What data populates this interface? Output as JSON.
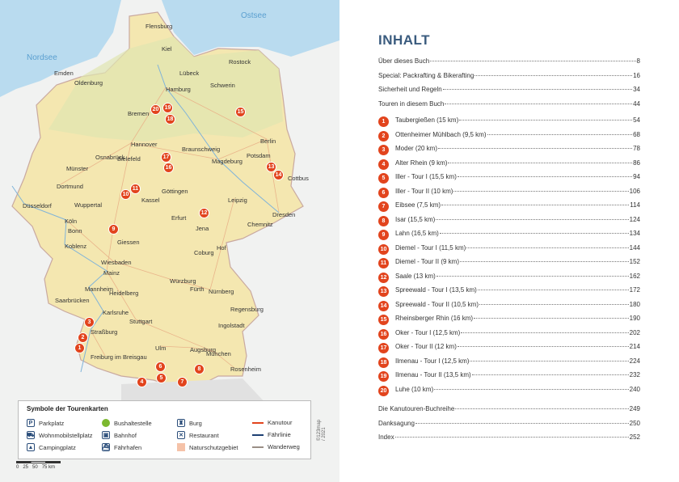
{
  "map": {
    "seas": [
      "Ostsee",
      "Nordsee"
    ],
    "cities": [
      "Flensburg",
      "Kiel",
      "Lübeck",
      "Rostock",
      "Emden",
      "Hamburg",
      "Schwerin",
      "Oldenburg",
      "Bremen",
      "Hannover",
      "Braunschweig",
      "Berlin",
      "Potsdam",
      "Magdeburg",
      "Osnabrück",
      "Bielefeld",
      "Münster",
      "Cottbus",
      "Dortmund",
      "Wuppertal",
      "Düsseldorf",
      "Kassel",
      "Göttingen",
      "Leipzig",
      "Dresden",
      "Köln",
      "Bonn",
      "Erfurt",
      "Jena",
      "Chemnitz",
      "Giessen",
      "Koblenz",
      "Coburg",
      "Hof",
      "Wiesbaden",
      "Mainz",
      "Würzburg",
      "Fürth",
      "Nürnberg",
      "Mannheim",
      "Heidelberg",
      "Saarbrücken",
      "Karlsruhe",
      "Regensburg",
      "Stuttgart",
      "Ingolstadt",
      "Straßburg",
      "Ulm",
      "Augsburg",
      "München",
      "Freiburg im Breisgau",
      "Rosenheim"
    ],
    "markers": [
      "1",
      "2",
      "3",
      "4",
      "5",
      "6",
      "7",
      "8",
      "9",
      "10",
      "11",
      "12",
      "13",
      "14",
      "15",
      "16",
      "17",
      "18",
      "19",
      "20"
    ],
    "legend": {
      "title": "Symbole der Tourenkarten",
      "items": [
        {
          "label": "Parkplatz",
          "icon": "parking-icon"
        },
        {
          "label": "Wohnmobilstellplatz",
          "icon": "camper-icon"
        },
        {
          "label": "Campingplatz",
          "icon": "tent-icon"
        },
        {
          "label": "Bushaltestelle",
          "icon": "bus-stop-icon"
        },
        {
          "label": "Bahnhof",
          "icon": "train-icon"
        },
        {
          "label": "Fährhafen",
          "icon": "ferry-port-icon"
        },
        {
          "label": "Burg",
          "icon": "castle-icon"
        },
        {
          "label": "Restaurant",
          "icon": "restaurant-icon"
        },
        {
          "label": "Naturschutzgebiet",
          "icon": "nature-reserve-swatch"
        },
        {
          "label": "Kanutour",
          "color": "#e2441d"
        },
        {
          "label": "Fährlinie",
          "color": "#1d3f73"
        },
        {
          "label": "Wanderweg",
          "color": "#9a8f86"
        }
      ]
    },
    "scale": "0   25   50   75 km",
    "copyright": "©123map / 2021"
  },
  "toc": {
    "title": "INHALT",
    "intro": [
      {
        "t": "Über dieses Buch",
        "p": "8"
      },
      {
        "t": "Special: Packrafting & Bikerafting",
        "p": "16"
      },
      {
        "t": "Sicherheit und Regeln",
        "p": "34"
      },
      {
        "t": "Touren in diesem Buch",
        "p": "44"
      }
    ],
    "tours": [
      {
        "n": "1",
        "t": "Taubergießen (15 km)",
        "p": "54"
      },
      {
        "n": "2",
        "t": "Ottenheimer Mühlbach (9,5 km)",
        "p": "68"
      },
      {
        "n": "3",
        "t": "Moder (20 km)",
        "p": "78"
      },
      {
        "n": "4",
        "t": "Alter Rhein (9 km)",
        "p": "86"
      },
      {
        "n": "5",
        "t": "Iller - Tour I (15,5 km)",
        "p": "94"
      },
      {
        "n": "6",
        "t": "Iller - Tour II (10 km)",
        "p": "106"
      },
      {
        "n": "7",
        "t": "Eibsee (7,5 km)",
        "p": "114"
      },
      {
        "n": "8",
        "t": "Isar (15,5 km)",
        "p": "124"
      },
      {
        "n": "9",
        "t": "Lahn (16,5 km)",
        "p": "134"
      },
      {
        "n": "10",
        "t": "Diemel - Tour I (11,5 km)",
        "p": "144"
      },
      {
        "n": "11",
        "t": "Diemel - Tour II (9 km)",
        "p": "152"
      },
      {
        "n": "12",
        "t": "Saale (13 km)",
        "p": "162"
      },
      {
        "n": "13",
        "t": "Spreewald - Tour I (13,5 km)",
        "p": "172"
      },
      {
        "n": "14",
        "t": "Spreewald - Tour II (10,5 km)",
        "p": "180"
      },
      {
        "n": "15",
        "t": "Rheinsberger Rhin (16 km)",
        "p": "190"
      },
      {
        "n": "16",
        "t": "Oker - Tour I (12,5 km)",
        "p": "202"
      },
      {
        "n": "17",
        "t": "Oker - Tour II (12 km)",
        "p": "214"
      },
      {
        "n": "18",
        "t": "Ilmenau - Tour I (12,5 km)",
        "p": "224"
      },
      {
        "n": "19",
        "t": "Ilmenau - Tour II (13,5 km)",
        "p": "232"
      },
      {
        "n": "20",
        "t": "Luhe (10 km)",
        "p": "240"
      }
    ],
    "outro": [
      {
        "t": "Die Kanutouren-Buchreihe",
        "p": "249"
      },
      {
        "t": "Danksagung",
        "p": "250"
      },
      {
        "t": "Index",
        "p": "252"
      }
    ]
  },
  "colors": {
    "accent": "#e2441d",
    "title": "#3a5b7e",
    "land": "#f4e7b0",
    "sea": "#b9dbef"
  }
}
